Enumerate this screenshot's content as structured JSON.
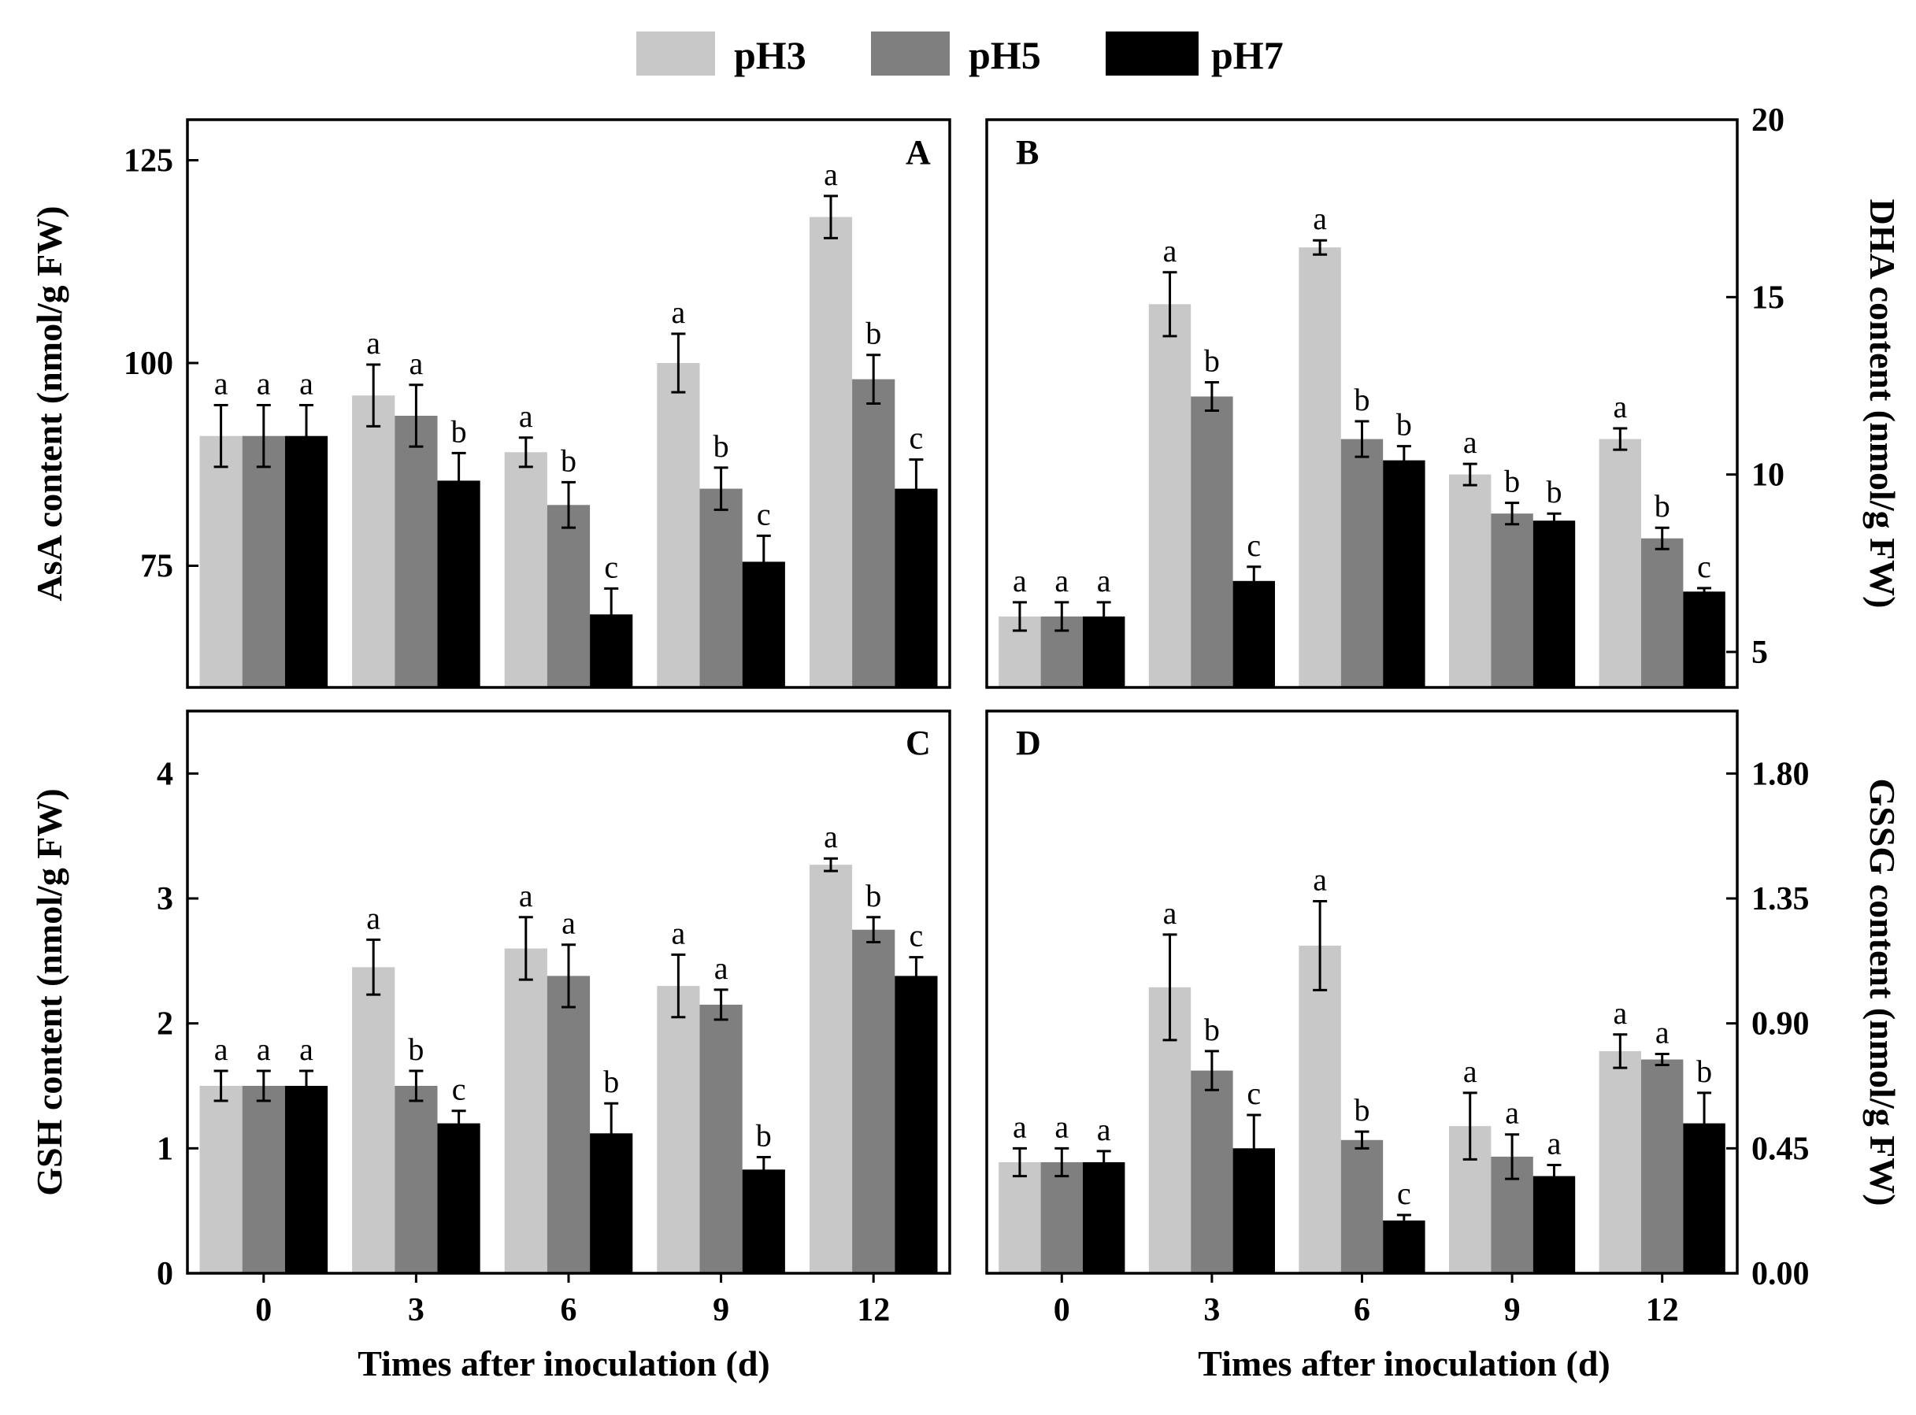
{
  "legend": [
    {
      "name": "pH3",
      "color": "#c8c8c8"
    },
    {
      "name": "pH5",
      "color": "#7f7f7f"
    },
    {
      "name": "pH7",
      "color": "#000000"
    }
  ],
  "shared_xlabel": "Times after inoculation (d)",
  "chart_data": [
    {
      "type": "bar",
      "panel": "A",
      "ylabel": "AsA content (nmol/g FW)",
      "ylim": [
        60,
        130
      ],
      "yticks": [
        "75",
        "100",
        "125"
      ],
      "ytick_values": [
        75,
        100,
        125
      ],
      "categories": [
        "0",
        "3",
        "6",
        "9",
        "12"
      ],
      "xlabel": "Times after inoculation (d)",
      "series": [
        {
          "name": "pH3",
          "values": [
            91,
            96,
            89,
            100,
            118
          ],
          "errors": [
            3.8,
            3.8,
            1.8,
            3.6,
            2.6
          ],
          "labels": [
            "a",
            "a",
            "a",
            "a",
            "a"
          ]
        },
        {
          "name": "pH5",
          "values": [
            91,
            93.5,
            82.5,
            84.5,
            98
          ],
          "errors": [
            3.8,
            3.8,
            2.8,
            2.6,
            3.0
          ],
          "labels": [
            "a",
            "a",
            "b",
            "b",
            "b"
          ]
        },
        {
          "name": "pH7",
          "values": [
            91,
            85.5,
            69,
            75.5,
            84.5
          ],
          "errors": [
            3.8,
            3.4,
            3.2,
            3.2,
            3.6
          ],
          "labels": [
            "a",
            "b",
            "c",
            "c",
            "c"
          ]
        }
      ]
    },
    {
      "type": "bar",
      "panel": "B",
      "ylabel": "DHA content (nmol/g FW)",
      "ylim": [
        4,
        20
      ],
      "yticks": [
        "5",
        "10",
        "15",
        "20"
      ],
      "ytick_values": [
        5,
        10,
        15,
        20
      ],
      "categories": [
        "0",
        "3",
        "6",
        "9",
        "12"
      ],
      "xlabel": "Times after inoculation (d)",
      "series": [
        {
          "name": "pH3",
          "values": [
            6.0,
            14.8,
            16.4,
            10.0,
            11.0
          ],
          "errors": [
            0.4,
            0.9,
            0.2,
            0.3,
            0.3
          ],
          "labels": [
            "a",
            "a",
            "a",
            "a",
            "a"
          ]
        },
        {
          "name": "pH5",
          "values": [
            6.0,
            12.2,
            11.0,
            8.9,
            8.2
          ],
          "errors": [
            0.4,
            0.4,
            0.5,
            0.3,
            0.3
          ],
          "labels": [
            "a",
            "b",
            "b",
            "b",
            "b"
          ]
        },
        {
          "name": "pH7",
          "values": [
            6.0,
            7.0,
            10.4,
            8.7,
            6.7
          ],
          "errors": [
            0.4,
            0.4,
            0.4,
            0.2,
            0.1
          ],
          "labels": [
            "a",
            "c",
            "b",
            "b",
            "c"
          ]
        }
      ]
    },
    {
      "type": "bar",
      "panel": "C",
      "ylabel": "GSH content (nmol/g FW)",
      "ylim": [
        0,
        4.5
      ],
      "yticks": [
        "0",
        "1",
        "2",
        "3",
        "4"
      ],
      "ytick_values": [
        0,
        1,
        2,
        3,
        4
      ],
      "categories": [
        "0",
        "3",
        "6",
        "9",
        "12"
      ],
      "xlabel": "Times after inoculation (d)",
      "series": [
        {
          "name": "pH3",
          "values": [
            1.5,
            2.45,
            2.6,
            2.3,
            3.27
          ],
          "errors": [
            0.12,
            0.22,
            0.25,
            0.25,
            0.05
          ],
          "labels": [
            "a",
            "a",
            "a",
            "a",
            "a"
          ]
        },
        {
          "name": "pH5",
          "values": [
            1.5,
            1.5,
            2.38,
            2.15,
            2.75
          ],
          "errors": [
            0.12,
            0.12,
            0.25,
            0.12,
            0.1
          ],
          "labels": [
            "a",
            "b",
            "a",
            "a",
            "b"
          ]
        },
        {
          "name": "pH7",
          "values": [
            1.5,
            1.2,
            1.12,
            0.83,
            2.38
          ],
          "errors": [
            0.12,
            0.1,
            0.24,
            0.1,
            0.15
          ],
          "labels": [
            "a",
            "c",
            "b",
            "b",
            "c"
          ]
        }
      ]
    },
    {
      "type": "bar",
      "panel": "D",
      "ylabel": "GSSG content (nmol/g FW)",
      "ylim": [
        0,
        2.025
      ],
      "yticks": [
        "0.00",
        "0.45",
        "0.90",
        "1.35",
        "1.80"
      ],
      "ytick_values": [
        0,
        0.45,
        0.9,
        1.35,
        1.8
      ],
      "categories": [
        "0",
        "3",
        "6",
        "9",
        "12"
      ],
      "xlabel": "Times after inoculation (d)",
      "series": [
        {
          "name": "pH3",
          "values": [
            0.4,
            1.03,
            1.18,
            0.53,
            0.8
          ],
          "errors": [
            0.05,
            0.19,
            0.16,
            0.12,
            0.06
          ],
          "labels": [
            "a",
            "a",
            "a",
            "a",
            "a"
          ]
        },
        {
          "name": "pH5",
          "values": [
            0.4,
            0.73,
            0.48,
            0.42,
            0.77
          ],
          "errors": [
            0.05,
            0.07,
            0.03,
            0.08,
            0.02
          ],
          "labels": [
            "a",
            "b",
            "b",
            "a",
            "a"
          ]
        },
        {
          "name": "pH7",
          "values": [
            0.4,
            0.45,
            0.19,
            0.35,
            0.54
          ],
          "errors": [
            0.04,
            0.12,
            0.02,
            0.04,
            0.11
          ],
          "labels": [
            "a",
            "c",
            "c",
            "a",
            "b"
          ]
        }
      ]
    }
  ]
}
